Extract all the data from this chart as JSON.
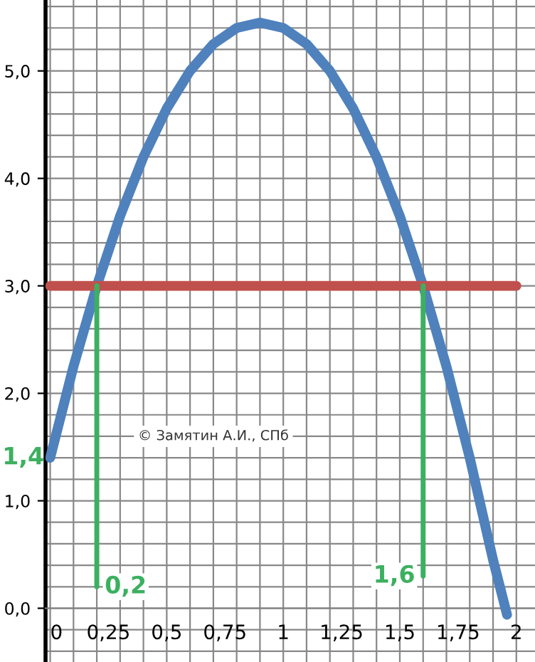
{
  "chart_data": {
    "type": "line",
    "series": [
      {
        "color": "#4f81bd",
        "x": [
          0,
          0.1,
          0.2,
          0.3,
          0.4,
          0.5,
          0.6,
          0.7,
          0.8,
          0.9,
          1.0,
          1.1,
          1.2,
          1.3,
          1.4,
          1.5,
          1.6,
          1.7,
          1.8,
          1.9,
          1.96
        ],
        "values": [
          1.4,
          2.25,
          3.0,
          3.65,
          4.2,
          4.65,
          5.0,
          5.25,
          5.4,
          5.45,
          5.4,
          5.25,
          5.0,
          4.65,
          4.2,
          3.65,
          3.0,
          2.25,
          1.4,
          0.45,
          -0.06
        ]
      },
      {
        "color": "#c0504d",
        "x": [
          0,
          2
        ],
        "values": [
          3.0,
          3.0
        ]
      },
      {
        "color": "#3cb060",
        "x": [
          0.2,
          0.2
        ],
        "values": [
          3.0,
          0.2
        ]
      },
      {
        "color": "#3cb060",
        "x": [
          1.6,
          1.6
        ],
        "values": [
          3.0,
          0.3
        ]
      }
    ],
    "xlim": [
      -0.02,
      2.08
    ],
    "ylim": [
      -0.5,
      5.66
    ],
    "xticks": [
      0,
      {
        "value": 0.25,
        "label": "0,25"
      },
      {
        "value": 0.5,
        "label": "0,5"
      },
      {
        "value": 0.75,
        "label": "0,75"
      },
      1,
      {
        "value": 1.25,
        "label": "1,25"
      },
      {
        "value": 1.5,
        "label": "1,5"
      },
      {
        "value": 1.75,
        "label": "1,75"
      },
      2
    ],
    "yticks": [
      {
        "value": 0,
        "label": "0,0"
      },
      {
        "value": 1,
        "label": "1,0"
      },
      {
        "value": 2,
        "label": "2,0"
      },
      {
        "value": 3,
        "label": "3,0"
      },
      {
        "value": 4,
        "label": "4,0"
      },
      {
        "value": 5,
        "label": "5,0"
      }
    ],
    "grid": true,
    "annotations": [
      {
        "text": "1,4",
        "x": 0,
        "y": 1.4
      },
      {
        "text": "0,2",
        "x": 0.2,
        "y": 0.2
      },
      {
        "text": "1,6",
        "x": 1.6,
        "y": 0.3
      },
      "© Замятин А.И., СПб"
    ]
  }
}
